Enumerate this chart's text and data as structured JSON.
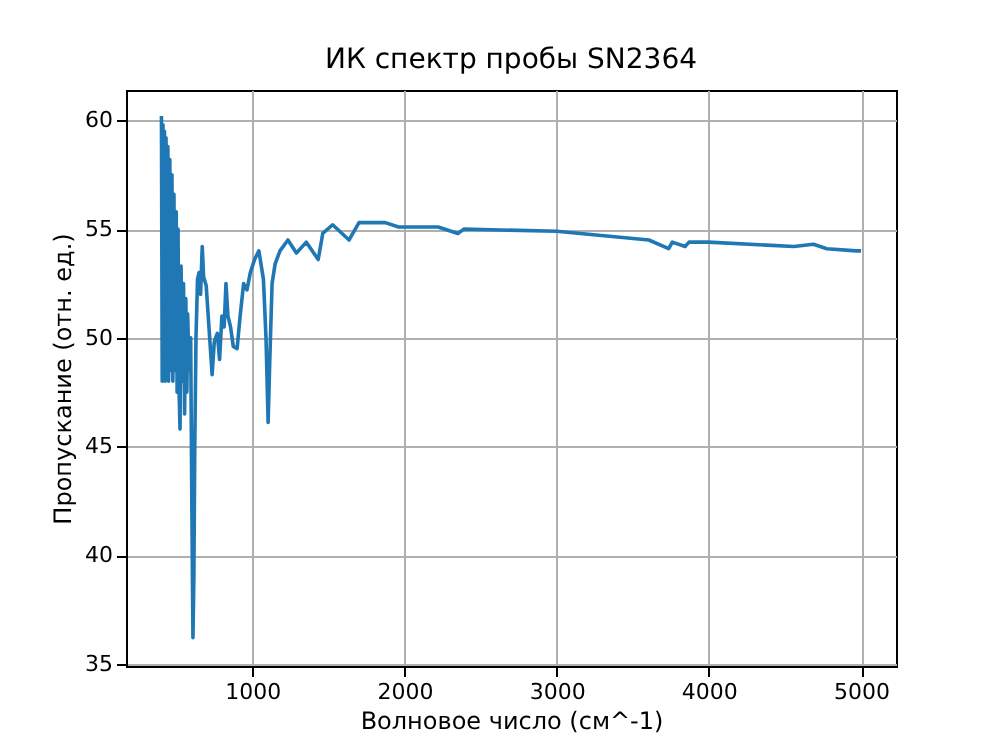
{
  "chart_data": {
    "type": "line",
    "title": "ИК спектр пробы SN2364",
    "xlabel": "Волновое число (см^-1)",
    "ylabel": "Пропускание (отн. ед.)",
    "x": [
      403,
      408,
      413,
      418,
      423,
      428,
      433,
      438,
      445,
      450,
      458,
      465,
      472,
      478,
      485,
      492,
      500,
      506,
      512,
      518,
      525,
      532,
      540,
      548,
      555,
      563,
      570,
      575,
      585,
      595,
      603,
      610,
      616,
      622,
      630,
      640,
      650,
      660,
      671,
      680,
      697,
      715,
      736,
      750,
      770,
      785,
      800,
      815,
      827,
      840,
      857,
      875,
      900,
      920,
      943,
      965,
      987,
      1015,
      1043,
      1073,
      1090,
      1104,
      1115,
      1130,
      1150,
      1182,
      1234,
      1290,
      1355,
      1433,
      1463,
      1528,
      1636,
      1701,
      1874,
      1961,
      2221,
      2351,
      2390,
      3000,
      3606,
      3736,
      3760,
      3844,
      3870,
      3996,
      4558,
      4688,
      4775,
      4970,
      5000
    ],
    "series": [
      {
        "color": "#1f77b4",
        "values": [
          60.2,
          48,
          59.8,
          48.2,
          59.5,
          48,
          59.2,
          48.3,
          58.8,
          48,
          58.2,
          48.5,
          57.5,
          48,
          56.6,
          48.5,
          55.8,
          47.5,
          55,
          47.8,
          45.8,
          53.3,
          48,
          52.5,
          46.5,
          51.8,
          47.5,
          51.1,
          48.5,
          50,
          42,
          36.2,
          39,
          45,
          50,
          52.7,
          53,
          52,
          54.2,
          52.8,
          52.4,
          50.5,
          48.3,
          49.8,
          50.2,
          49,
          51,
          50.5,
          52.5,
          51,
          50.5,
          49.6,
          49.5,
          51,
          52.5,
          52.2,
          53,
          53.6,
          54,
          52.7,
          50,
          46.1,
          49,
          52.5,
          53.4,
          54,
          54.5,
          53.9,
          54.4,
          53.6,
          54.8,
          55.2,
          54.5,
          55.3,
          55.3,
          55.1,
          55.1,
          54.8,
          55,
          54.9,
          54.5,
          54.1,
          54.4,
          54.2,
          54.4,
          54.4,
          54.2,
          54.3,
          54.1,
          54,
          54
        ]
      }
    ],
    "xlim": [
      170,
      5230
    ],
    "ylim": [
      34.9,
      61.4
    ],
    "xticks": [
      1000,
      2000,
      3000,
      4000,
      5000
    ],
    "yticks": [
      35,
      40,
      45,
      50,
      55,
      60
    ],
    "grid": true
  }
}
